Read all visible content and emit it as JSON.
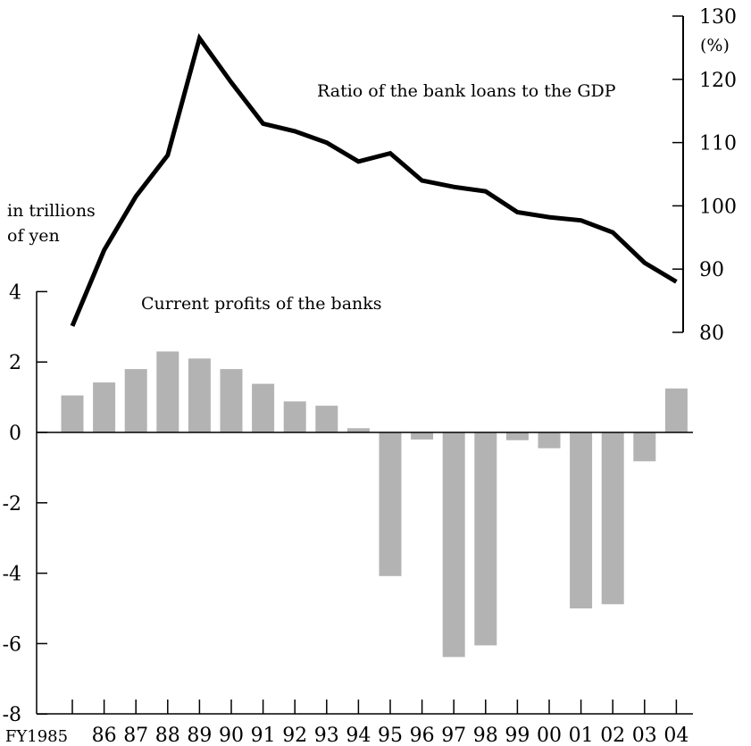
{
  "chart_data": {
    "type": "bar+line",
    "categories": [
      "FY1985",
      "86",
      "87",
      "88",
      "89",
      "90",
      "91",
      "92",
      "93",
      "94",
      "95",
      "96",
      "97",
      "98",
      "99",
      "00",
      "01",
      "02",
      "03",
      "04"
    ],
    "bar_series": {
      "name": "Current profits of the banks",
      "values": [
        1.05,
        1.42,
        1.8,
        2.3,
        2.1,
        1.8,
        1.38,
        0.88,
        0.76,
        0.12,
        -4.08,
        -0.2,
        -6.38,
        -6.05,
        -0.22,
        -0.45,
        -5.0,
        -4.88,
        -0.82,
        1.25
      ],
      "color": "#b3b3b3"
    },
    "line_series": {
      "name": "Ratio of the bank loans to the GDP",
      "values": [
        81,
        93,
        101.5,
        108,
        126.5,
        119.5,
        113,
        111.8,
        110,
        107,
        108.3,
        104,
        103,
        102.3,
        99,
        98.2,
        97.7,
        95.8,
        91,
        88
      ],
      "color": "#000000"
    },
    "left_axis": {
      "label": "in trillions of yen",
      "label_lines": [
        "in trillions",
        "of yen"
      ],
      "ylim": [
        -8,
        4
      ],
      "ticks": [
        "4",
        "2",
        "0",
        "-2",
        "-4",
        "-6",
        "-8"
      ]
    },
    "right_axis": {
      "unit": "(%)",
      "ylim": [
        80,
        130
      ],
      "ticks": [
        "130",
        "120",
        "110",
        "100",
        "90",
        "80"
      ]
    }
  }
}
